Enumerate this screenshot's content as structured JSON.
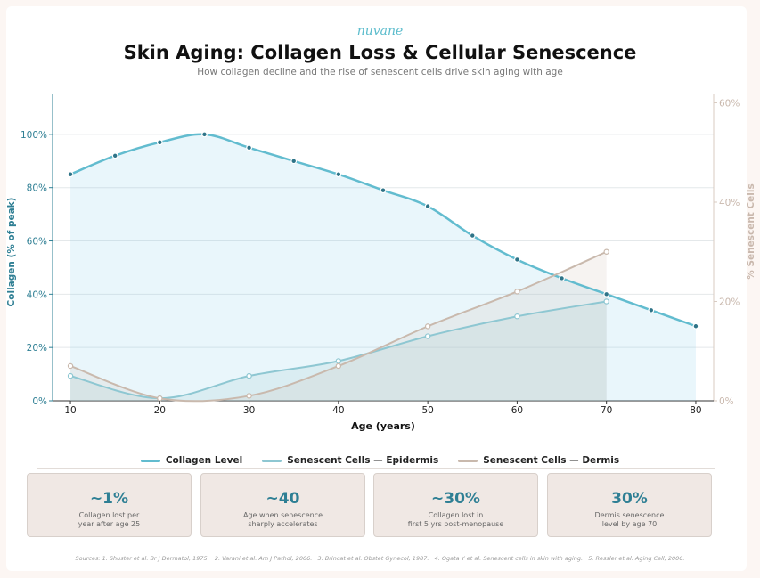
{
  "brand": "nuvane",
  "title": "Skin Aging: Collagen Loss & Cellular Senescence",
  "subtitle": "How collagen decline and the rise of senescent cells drive skin aging with age",
  "chart_data": {
    "type": "line",
    "xlabel": "Age (years)",
    "ylabel_left": "Collagen (% of peak)",
    "ylabel_right": "% Senescent Cells",
    "xlim": [
      8,
      82
    ],
    "ylim_left": [
      0,
      115
    ],
    "ylim_right": [
      0,
      61.7
    ],
    "x_ticks": [
      10,
      20,
      30,
      40,
      50,
      60,
      70,
      80
    ],
    "y_left_ticks": [
      0,
      20,
      40,
      60,
      80,
      100
    ],
    "y_left_tick_labels": [
      "0%",
      "20%",
      "40%",
      "60%",
      "80%",
      "100%"
    ],
    "y_right_ticks": [
      0,
      20,
      40,
      60
    ],
    "y_right_tick_labels": [
      "0%",
      "20%",
      "40%",
      "60%"
    ],
    "grid": true,
    "series": [
      {
        "name": "Collagen Level",
        "axis": "left",
        "color": "#62bccf",
        "x": [
          10,
          15,
          20,
          25,
          30,
          35,
          40,
          45,
          50,
          55,
          60,
          65,
          70,
          75,
          80
        ],
        "y": [
          85,
          92,
          97,
          100,
          95,
          90,
          85,
          79,
          73,
          62,
          53,
          46,
          40,
          34,
          28
        ]
      },
      {
        "name": "Senescent Cells — Epidermis",
        "axis": "right",
        "color": "#8ec7d2",
        "x": [
          10,
          20,
          30,
          40,
          50,
          60,
          70
        ],
        "y": [
          5,
          0.5,
          5,
          8,
          13,
          17,
          20
        ]
      },
      {
        "name": "Senescent Cells — Dermis",
        "axis": "right",
        "color": "#c9b9ad",
        "x": [
          10,
          20,
          30,
          40,
          50,
          60,
          70
        ],
        "y": [
          7,
          0.5,
          1,
          7,
          15,
          22,
          30
        ]
      }
    ]
  },
  "stats": [
    {
      "value": "~1%",
      "label": "Collagen lost per\nyear after age 25"
    },
    {
      "value": "~40",
      "label": "Age when senescence\nsharply accelerates"
    },
    {
      "value": "~30%",
      "label": "Collagen lost in\nfirst 5 yrs post-menopause"
    },
    {
      "value": "30%",
      "label": "Dermis senescence\nlevel by age 70"
    }
  ],
  "sources": "Sources:  1. Shuster et al. Br J Dermatol, 1975.  ·  2. Varani et al. Am J Pathol, 2006.  ·  3. Brincat et al. Obstet Gynecol, 1987.  ·  4. Ogata Y et al. Senescent cells in skin with aging.  ·  5. Ressler et al. Aging Cell, 2006."
}
